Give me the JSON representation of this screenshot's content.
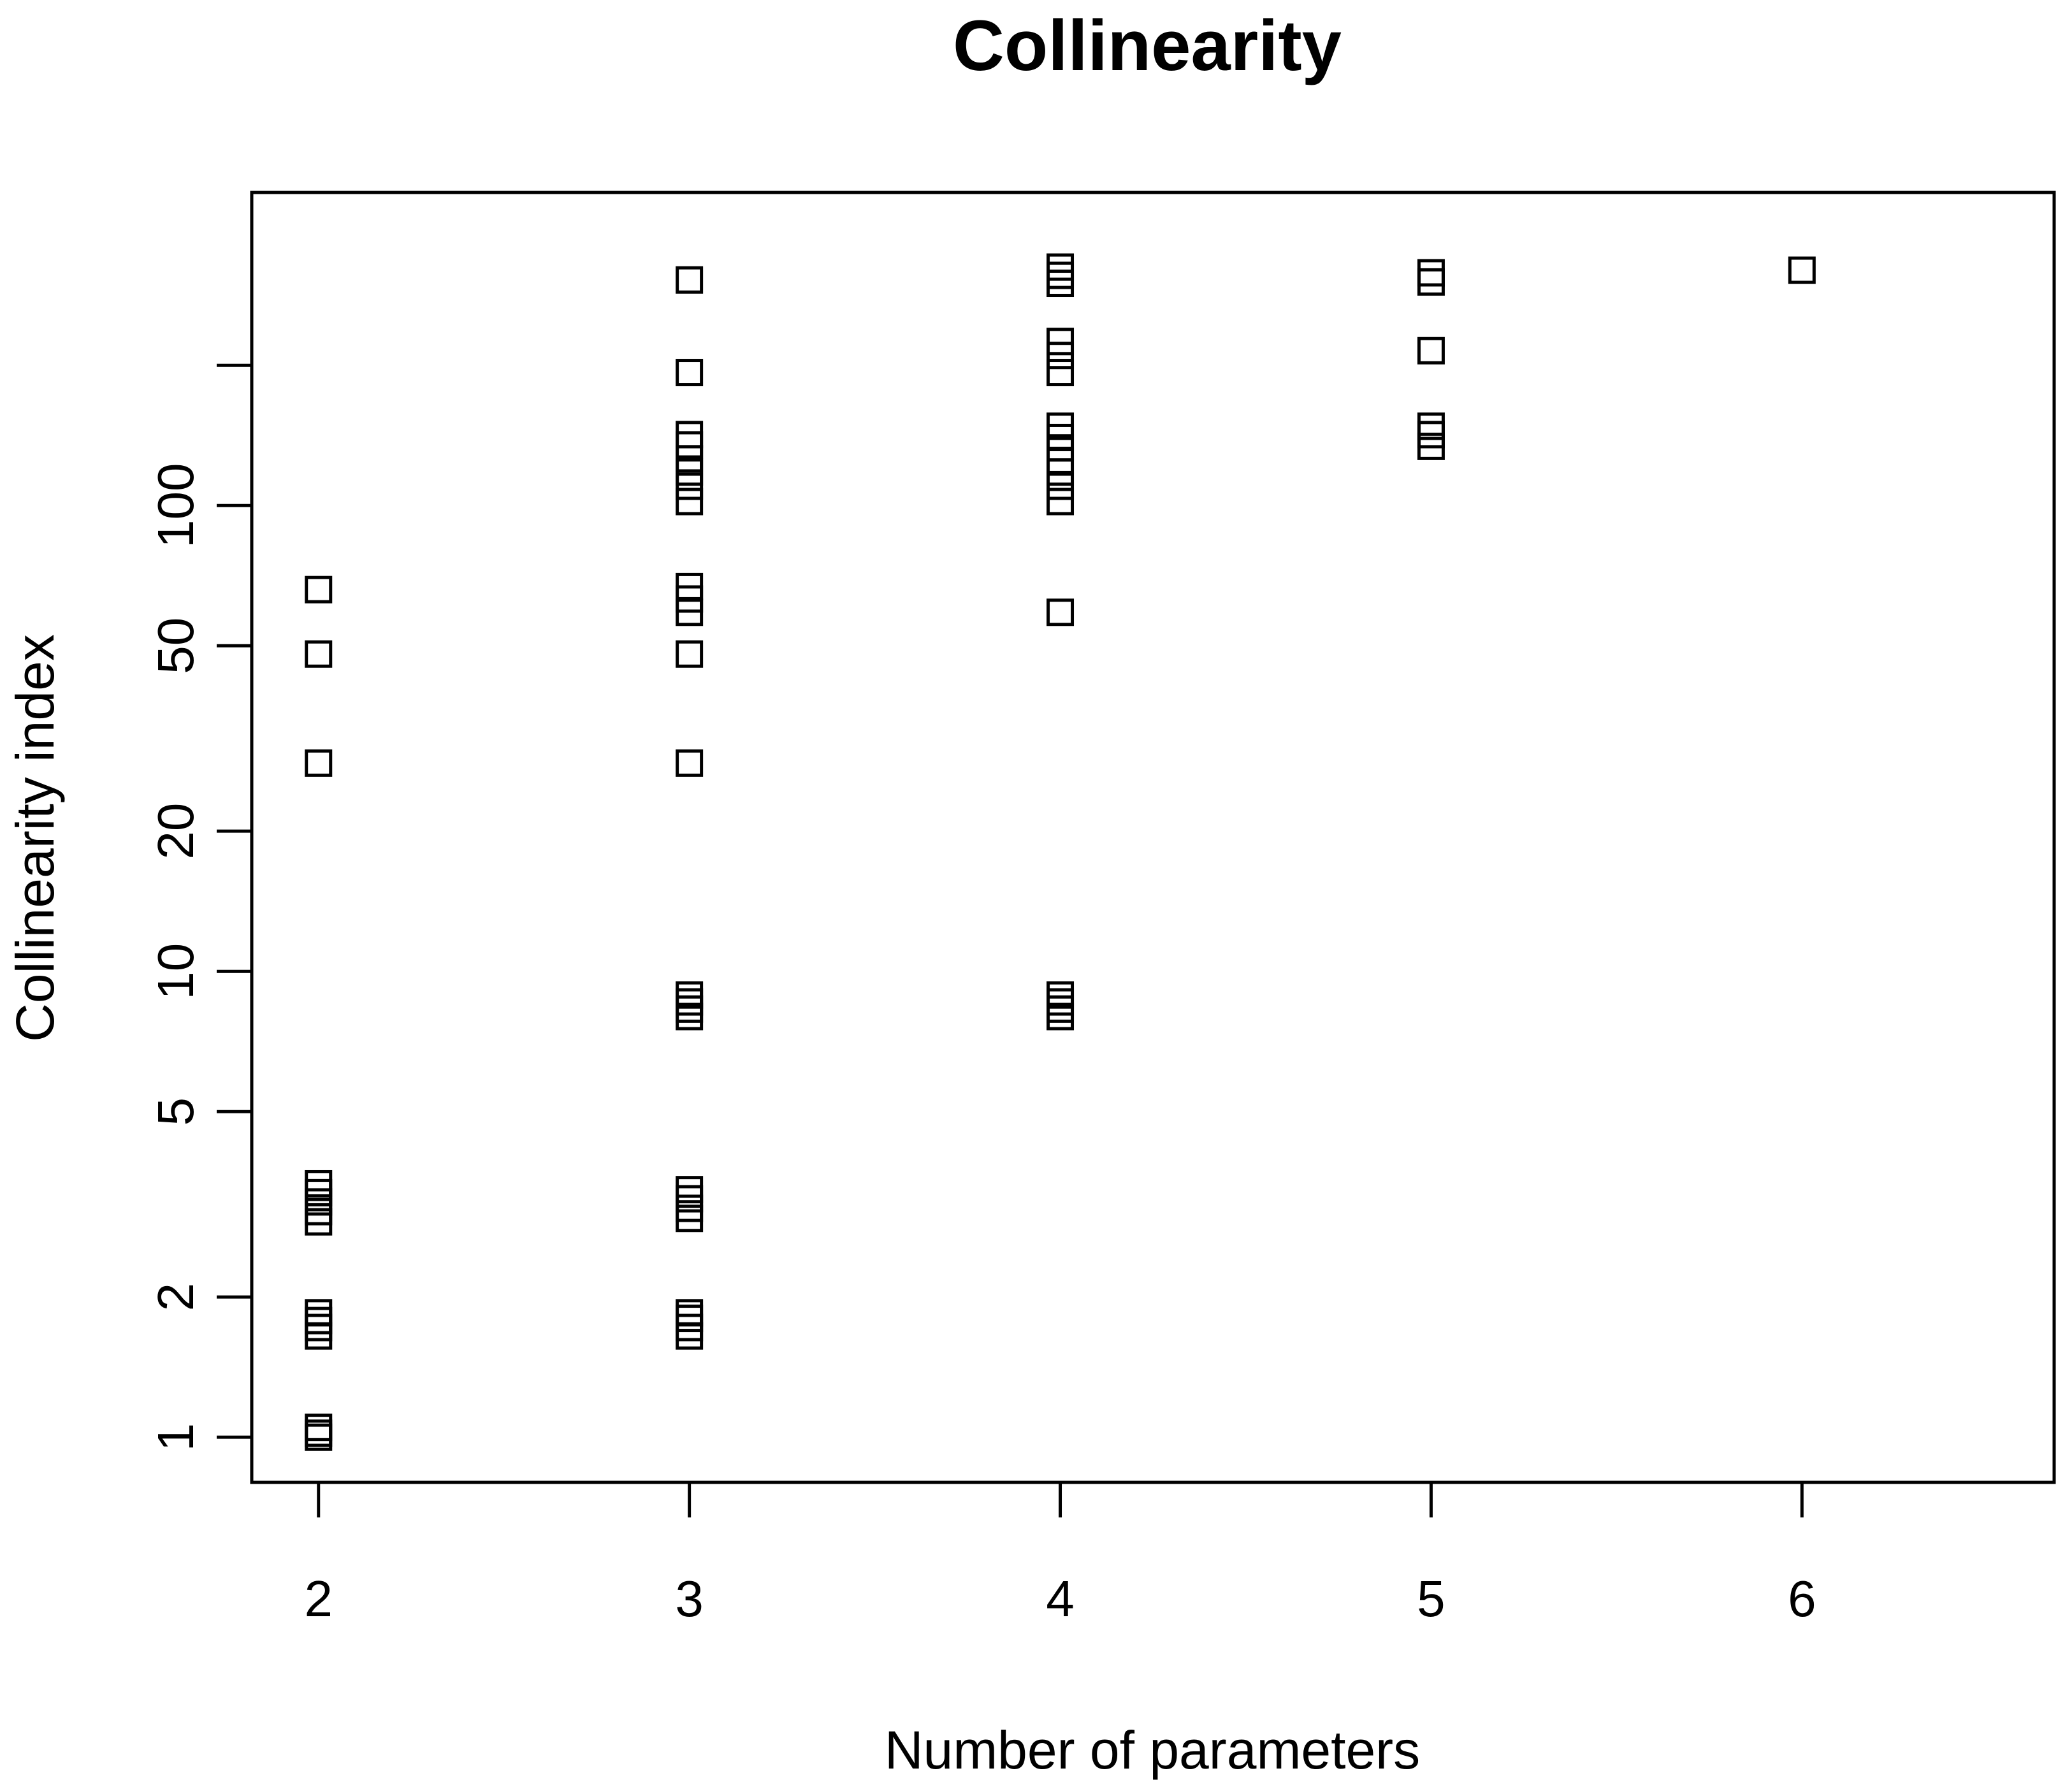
{
  "chart_data": {
    "type": "scatter",
    "title": "Collinearity",
    "xlabel": "Number of parameters",
    "ylabel": "Collinearity index",
    "xlim": [
      1.82,
      6.68
    ],
    "ylim": [
      0.8,
      470
    ],
    "y_scale": "log",
    "x_ticks": [
      2,
      3,
      4,
      5,
      6
    ],
    "y_ticks": [
      1,
      2,
      5,
      10,
      20,
      50,
      100
    ],
    "grid": false,
    "legend": "none",
    "marker": "open-square",
    "points": [
      {
        "x": 2,
        "y": 1.0
      },
      {
        "x": 2,
        "y": 1.02
      },
      {
        "x": 2,
        "y": 1.05
      },
      {
        "x": 2,
        "y": 1.65
      },
      {
        "x": 2,
        "y": 1.72
      },
      {
        "x": 2,
        "y": 1.78
      },
      {
        "x": 2,
        "y": 1.85
      },
      {
        "x": 2,
        "y": 2.9
      },
      {
        "x": 2,
        "y": 3.05
      },
      {
        "x": 2,
        "y": 3.2
      },
      {
        "x": 2,
        "y": 3.35
      },
      {
        "x": 2,
        "y": 3.5
      },
      {
        "x": 2,
        "y": 28
      },
      {
        "x": 2,
        "y": 48
      },
      {
        "x": 2,
        "y": 66
      },
      {
        "x": 3,
        "y": 1.65
      },
      {
        "x": 3,
        "y": 1.72
      },
      {
        "x": 3,
        "y": 1.8
      },
      {
        "x": 3,
        "y": 1.85
      },
      {
        "x": 3,
        "y": 2.95
      },
      {
        "x": 3,
        "y": 3.1
      },
      {
        "x": 3,
        "y": 3.25
      },
      {
        "x": 3,
        "y": 3.4
      },
      {
        "x": 3,
        "y": 8.0
      },
      {
        "x": 3,
        "y": 8.3
      },
      {
        "x": 3,
        "y": 8.6
      },
      {
        "x": 3,
        "y": 8.9
      },
      {
        "x": 3,
        "y": 28
      },
      {
        "x": 3,
        "y": 48
      },
      {
        "x": 3,
        "y": 59
      },
      {
        "x": 3,
        "y": 63
      },
      {
        "x": 3,
        "y": 67
      },
      {
        "x": 3,
        "y": 102
      },
      {
        "x": 3,
        "y": 110
      },
      {
        "x": 3,
        "y": 118
      },
      {
        "x": 3,
        "y": 126
      },
      {
        "x": 3,
        "y": 135
      },
      {
        "x": 3,
        "y": 142
      },
      {
        "x": 3,
        "y": 193
      },
      {
        "x": 3,
        "y": 305
      },
      {
        "x": 4,
        "y": 8.0
      },
      {
        "x": 4,
        "y": 8.3
      },
      {
        "x": 4,
        "y": 8.6
      },
      {
        "x": 4,
        "y": 8.9
      },
      {
        "x": 4,
        "y": 59
      },
      {
        "x": 4,
        "y": 102
      },
      {
        "x": 4,
        "y": 110
      },
      {
        "x": 4,
        "y": 118
      },
      {
        "x": 4,
        "y": 125
      },
      {
        "x": 4,
        "y": 133
      },
      {
        "x": 4,
        "y": 140
      },
      {
        "x": 4,
        "y": 148
      },
      {
        "x": 4,
        "y": 193
      },
      {
        "x": 4,
        "y": 210
      },
      {
        "x": 4,
        "y": 225
      },
      {
        "x": 4,
        "y": 300
      },
      {
        "x": 4,
        "y": 312
      },
      {
        "x": 4,
        "y": 325
      },
      {
        "x": 5,
        "y": 134
      },
      {
        "x": 5,
        "y": 142
      },
      {
        "x": 5,
        "y": 148
      },
      {
        "x": 5,
        "y": 215
      },
      {
        "x": 5,
        "y": 302
      },
      {
        "x": 5,
        "y": 316
      },
      {
        "x": 6,
        "y": 320
      }
    ]
  }
}
